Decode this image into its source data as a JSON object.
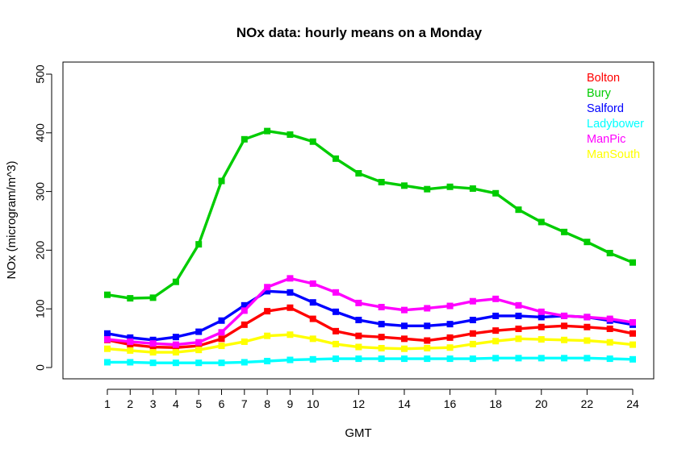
{
  "chart_data": {
    "type": "line",
    "title": "NOx data: hourly means on a Monday",
    "xlabel": "GMT",
    "ylabel": "NOx (microgram/m^3)",
    "xlim": [
      1,
      24
    ],
    "ylim": [
      0,
      500
    ],
    "x": [
      1,
      2,
      3,
      4,
      5,
      6,
      7,
      8,
      9,
      10,
      11,
      12,
      13,
      14,
      15,
      16,
      17,
      18,
      19,
      20,
      21,
      22,
      23,
      24
    ],
    "x_ticks": [
      1,
      2,
      3,
      4,
      5,
      6,
      7,
      8,
      9,
      10,
      12,
      14,
      16,
      18,
      20,
      22,
      24
    ],
    "y_ticks": [
      0,
      100,
      200,
      300,
      400,
      500
    ],
    "legend_position": "top-right",
    "series": [
      {
        "name": "Bolton",
        "color": "#ff0000",
        "values": [
          47,
          39,
          35,
          34,
          37,
          49,
          73,
          96,
          102,
          83,
          62,
          54,
          52,
          49,
          46,
          51,
          58,
          63,
          66,
          69,
          71,
          69,
          66,
          58
        ]
      },
      {
        "name": "Bury",
        "color": "#00cc00",
        "values": [
          124,
          118,
          119,
          146,
          210,
          318,
          389,
          403,
          397,
          385,
          356,
          331,
          316,
          310,
          304,
          308,
          305,
          297,
          269,
          248,
          231,
          214,
          195,
          179
        ]
      },
      {
        "name": "Salford",
        "color": "#0000ff",
        "values": [
          58,
          51,
          47,
          52,
          61,
          80,
          106,
          130,
          128,
          111,
          95,
          81,
          74,
          71,
          71,
          74,
          81,
          88,
          88,
          86,
          88,
          86,
          80,
          73
        ]
      },
      {
        "name": "Ladybower",
        "color": "#00ffff",
        "values": [
          9,
          9,
          8,
          8,
          8,
          8,
          9,
          11,
          13,
          14,
          15,
          15,
          15,
          15,
          15,
          15,
          15,
          16,
          16,
          16,
          16,
          16,
          15,
          14
        ]
      },
      {
        "name": "ManPic",
        "color": "#ff00ff",
        "values": [
          48,
          44,
          41,
          39,
          43,
          60,
          97,
          137,
          152,
          143,
          128,
          110,
          103,
          98,
          101,
          105,
          113,
          117,
          106,
          95,
          88,
          86,
          83,
          77
        ]
      },
      {
        "name": "ManSouth",
        "color": "#ffff00",
        "values": [
          32,
          29,
          26,
          26,
          30,
          37,
          44,
          54,
          56,
          49,
          40,
          35,
          33,
          32,
          33,
          34,
          40,
          45,
          49,
          48,
          47,
          46,
          43,
          39
        ]
      }
    ]
  }
}
